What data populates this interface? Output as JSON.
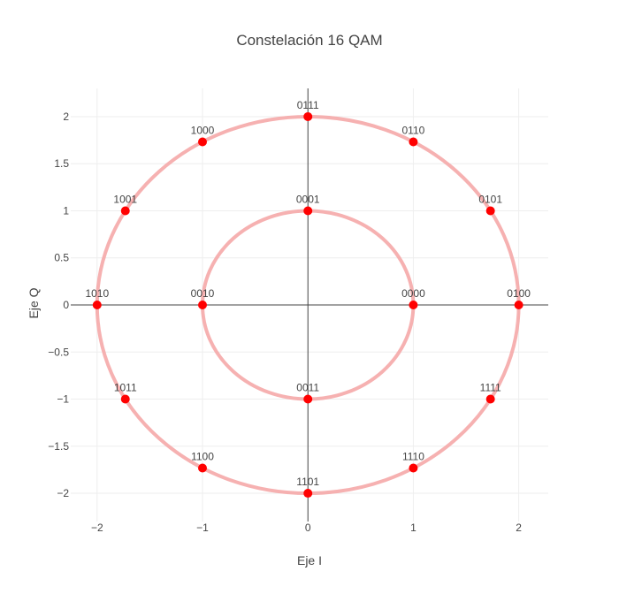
{
  "chart_data": {
    "type": "scatter",
    "title": "Constelación 16 QAM",
    "xlabel": "Eje I",
    "ylabel": "Eje Q",
    "xlim": [
      -2.25,
      2.28
    ],
    "ylim": [
      -2.3,
      2.3
    ],
    "grid": true,
    "legend": "none",
    "x_ticks": [
      -2,
      -1,
      0,
      1,
      2
    ],
    "x_tick_labels": [
      "−2",
      "−1",
      "0",
      "1",
      "2"
    ],
    "y_ticks": [
      2,
      1.5,
      1,
      0.5,
      0,
      -0.5,
      -1,
      -1.5,
      -2
    ],
    "y_tick_labels": [
      "2",
      "1.5",
      "1",
      "0.5",
      "0",
      "−0.5",
      "−1",
      "−1.5",
      "−2"
    ],
    "rings": [
      {
        "radius": 1,
        "color": "#f4a3a3"
      },
      {
        "radius": 2,
        "color": "#f4a3a3"
      }
    ],
    "points": [
      {
        "label": "0000",
        "x": 1,
        "y": 0
      },
      {
        "label": "0001",
        "x": 0,
        "y": 1
      },
      {
        "label": "0010",
        "x": -1,
        "y": 0
      },
      {
        "label": "0011",
        "x": 0,
        "y": -1
      },
      {
        "label": "0100",
        "x": 2,
        "y": 0
      },
      {
        "label": "0101",
        "x": 1.732,
        "y": 1
      },
      {
        "label": "0110",
        "x": 1,
        "y": 1.732
      },
      {
        "label": "0111",
        "x": 0,
        "y": 2
      },
      {
        "label": "1000",
        "x": -1,
        "y": 1.732
      },
      {
        "label": "1001",
        "x": -1.732,
        "y": 1
      },
      {
        "label": "1010",
        "x": -2,
        "y": 0
      },
      {
        "label": "1011",
        "x": -1.732,
        "y": -1
      },
      {
        "label": "1100",
        "x": -1,
        "y": -1.732
      },
      {
        "label": "1101",
        "x": 0,
        "y": -2
      },
      {
        "label": "1110",
        "x": 1,
        "y": -1.732
      },
      {
        "label": "1111",
        "x": 1.732,
        "y": -1
      }
    ],
    "point_color": "#ff0000"
  }
}
